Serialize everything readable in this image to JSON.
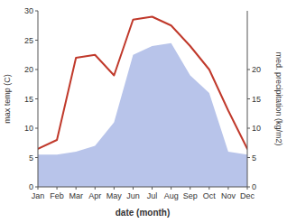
{
  "chart_data": {
    "type": "line",
    "categories": [
      "Jan",
      "Feb",
      "Mar",
      "Apr",
      "May",
      "Jun",
      "Jul",
      "Aug",
      "Sep",
      "Oct",
      "Nov",
      "Dec"
    ],
    "series": [
      {
        "type": "line",
        "color": "#c0392b",
        "values": [
          6.5,
          8.0,
          22.0,
          22.5,
          19.0,
          28.5,
          29.0,
          27.5,
          24.0,
          20.0,
          13.0,
          6.5
        ]
      },
      {
        "type": "area",
        "color": "#b8c4ea",
        "axis": "y2",
        "values": [
          5.5,
          5.5,
          6.0,
          7.0,
          11.0,
          22.5,
          24.0,
          24.5,
          19.0,
          16.0,
          6.0,
          5.5
        ]
      }
    ],
    "xlabel": "date (month)",
    "ylabel": "max temp (C)",
    "y2label": "med. precipitation (kg/m2)",
    "ylim": [
      0,
      30
    ],
    "yticks": [
      0,
      5,
      10,
      15,
      20,
      25,
      30
    ],
    "y2lim": [
      0,
      30
    ],
    "y2ticks": [
      0,
      5,
      10,
      15,
      20
    ],
    "grid": false
  }
}
